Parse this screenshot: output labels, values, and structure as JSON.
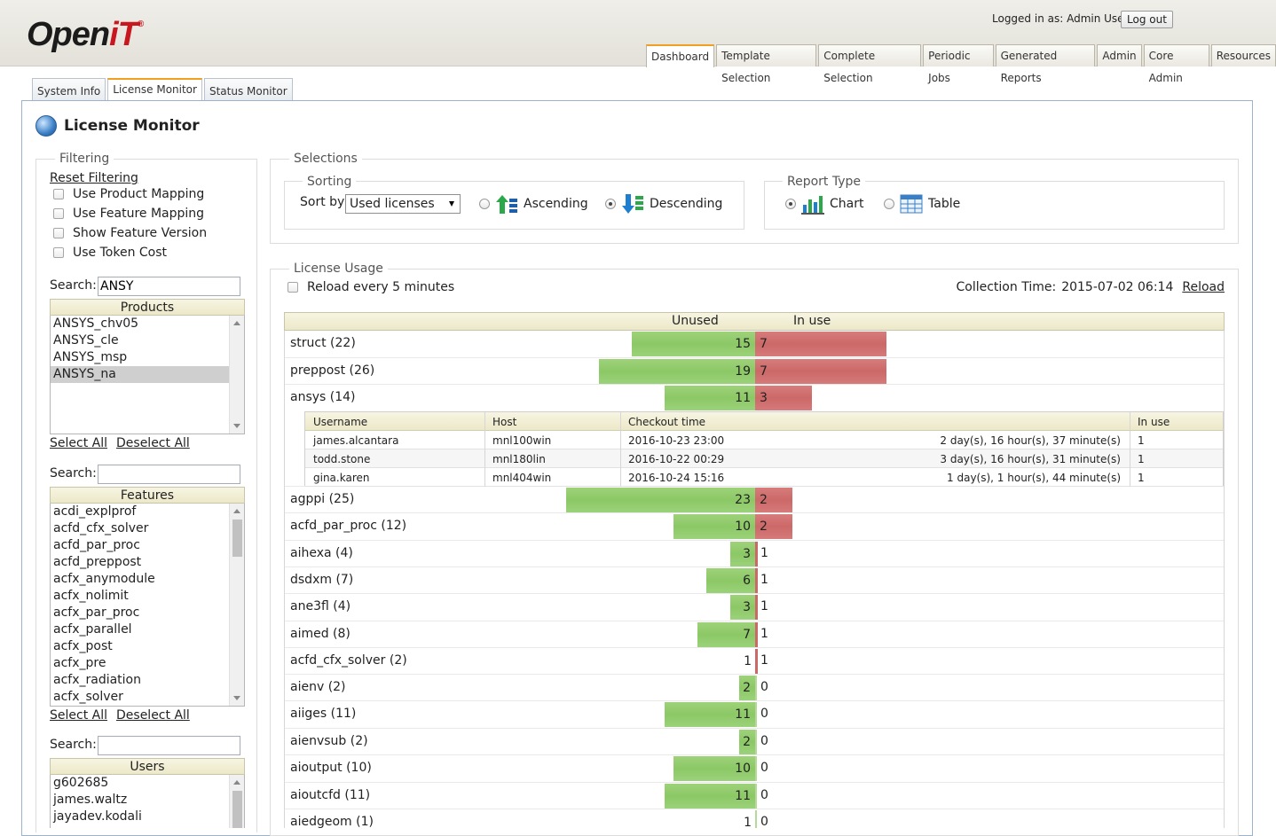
{
  "header": {
    "logged_in_text": "Logged in as: Admin User",
    "logout_label": "Log out",
    "logo_text_a": "Open",
    "logo_text_b": "iT",
    "logo_mark": "®"
  },
  "main_tabs": [
    "Dashboard",
    "Template Selection",
    "Complete Selection",
    "Periodic Jobs",
    "Generated Reports",
    "Admin",
    "Core Admin",
    "Resources"
  ],
  "sub_tabs": [
    "System Info",
    "License Monitor",
    "Status Monitor"
  ],
  "page_title": "License Monitor",
  "filtering": {
    "legend": "Filtering",
    "reset_label": "Reset Filtering",
    "options": [
      "Use Product Mapping",
      "Use Feature Mapping",
      "Show Feature Version",
      "Use Token Cost"
    ],
    "search_label": "Search:",
    "products": {
      "search_value": "ANSY",
      "header": "Products",
      "items": [
        "ANSYS_chv05",
        "ANSYS_cle",
        "ANSYS_msp",
        "ANSYS_na"
      ],
      "selected": "ANSYS_na"
    },
    "features": {
      "search_value": "",
      "header": "Features",
      "items": [
        "acdi_explprof",
        "acfd_cfx_solver",
        "acfd_par_proc",
        "acfd_preppost",
        "acfx_anymodule",
        "acfx_nolimit",
        "acfx_par_proc",
        "acfx_parallel",
        "acfx_post",
        "acfx_pre",
        "acfx_radiation",
        "acfx_solver"
      ]
    },
    "users": {
      "search_value": "",
      "header": "Users",
      "items": [
        "g602685",
        "james.waltz",
        "jayadev.kodali"
      ]
    },
    "select_all": "Select All",
    "deselect_all": "Deselect All"
  },
  "selections": {
    "legend": "Selections",
    "sorting": {
      "legend": "Sorting",
      "sort_by_label": "Sort by",
      "sort_by_value": "Used licenses",
      "ascending_label": "Ascending",
      "descending_label": "Descending",
      "selected_order": "Descending"
    },
    "report_type": {
      "legend": "Report Type",
      "chart_label": "Chart",
      "table_label": "Table",
      "selected": "Chart"
    }
  },
  "license_usage": {
    "legend": "License Usage",
    "reload_every_label": "Reload every 5 minutes",
    "collection_time_label": "Collection Time:",
    "collection_time_value": "2015-07-02 06:14",
    "reload_label": "Reload",
    "col_unused": "Unused",
    "col_in_use": "In use"
  },
  "detail_table": {
    "columns": [
      "Username",
      "Host",
      "Checkout time",
      "In use"
    ],
    "rows": [
      {
        "username": "james.alcantara",
        "host": "mnl100win",
        "checkout": "2016-10-23 23:00",
        "duration": "2 day(s), 16 hour(s), 37 minute(s)",
        "in_use": "1"
      },
      {
        "username": "todd.stone",
        "host": "mnl180lin",
        "checkout": "2016-10-22 00:29",
        "duration": "3 day(s), 16 hour(s), 31 minute(s)",
        "in_use": "1"
      },
      {
        "username": "gina.karen",
        "host": "mnl404win",
        "checkout": "2016-10-24 15:16",
        "duration": "1 day(s), 1 hour(s), 44 minute(s)",
        "in_use": "1"
      }
    ]
  },
  "chart_data": {
    "type": "bar",
    "orientation": "horizontal-diverging",
    "series": [
      {
        "name": "Unused"
      },
      {
        "name": "In use"
      }
    ],
    "rows": [
      {
        "label": "struct (22)",
        "unused": 15,
        "in_use": 7
      },
      {
        "label": "preppost (26)",
        "unused": 19,
        "in_use": 7
      },
      {
        "label": "ansys (14)",
        "unused": 11,
        "in_use": 3
      },
      {
        "label": "agppi (25)",
        "unused": 23,
        "in_use": 2
      },
      {
        "label": "acfd_par_proc (12)",
        "unused": 10,
        "in_use": 2
      },
      {
        "label": "aihexa (4)",
        "unused": 3,
        "in_use": 1
      },
      {
        "label": "dsdxm (7)",
        "unused": 6,
        "in_use": 1
      },
      {
        "label": "ane3fl (4)",
        "unused": 3,
        "in_use": 1
      },
      {
        "label": "aimed (8)",
        "unused": 7,
        "in_use": 1
      },
      {
        "label": "acfd_cfx_solver (2)",
        "unused": 1,
        "in_use": 1
      },
      {
        "label": "aienv (2)",
        "unused": 2,
        "in_use": 0
      },
      {
        "label": "aiiges (11)",
        "unused": 11,
        "in_use": 0
      },
      {
        "label": "aienvsub (2)",
        "unused": 2,
        "in_use": 0
      },
      {
        "label": "aioutput (10)",
        "unused": 10,
        "in_use": 0
      },
      {
        "label": "aioutcfd (11)",
        "unused": 11,
        "in_use": 0
      },
      {
        "label": "aiedgeom (1)",
        "unused": 1,
        "in_use": 0
      }
    ],
    "colors": {
      "unused": "#8cc866",
      "in_use": "#cc6868"
    }
  }
}
